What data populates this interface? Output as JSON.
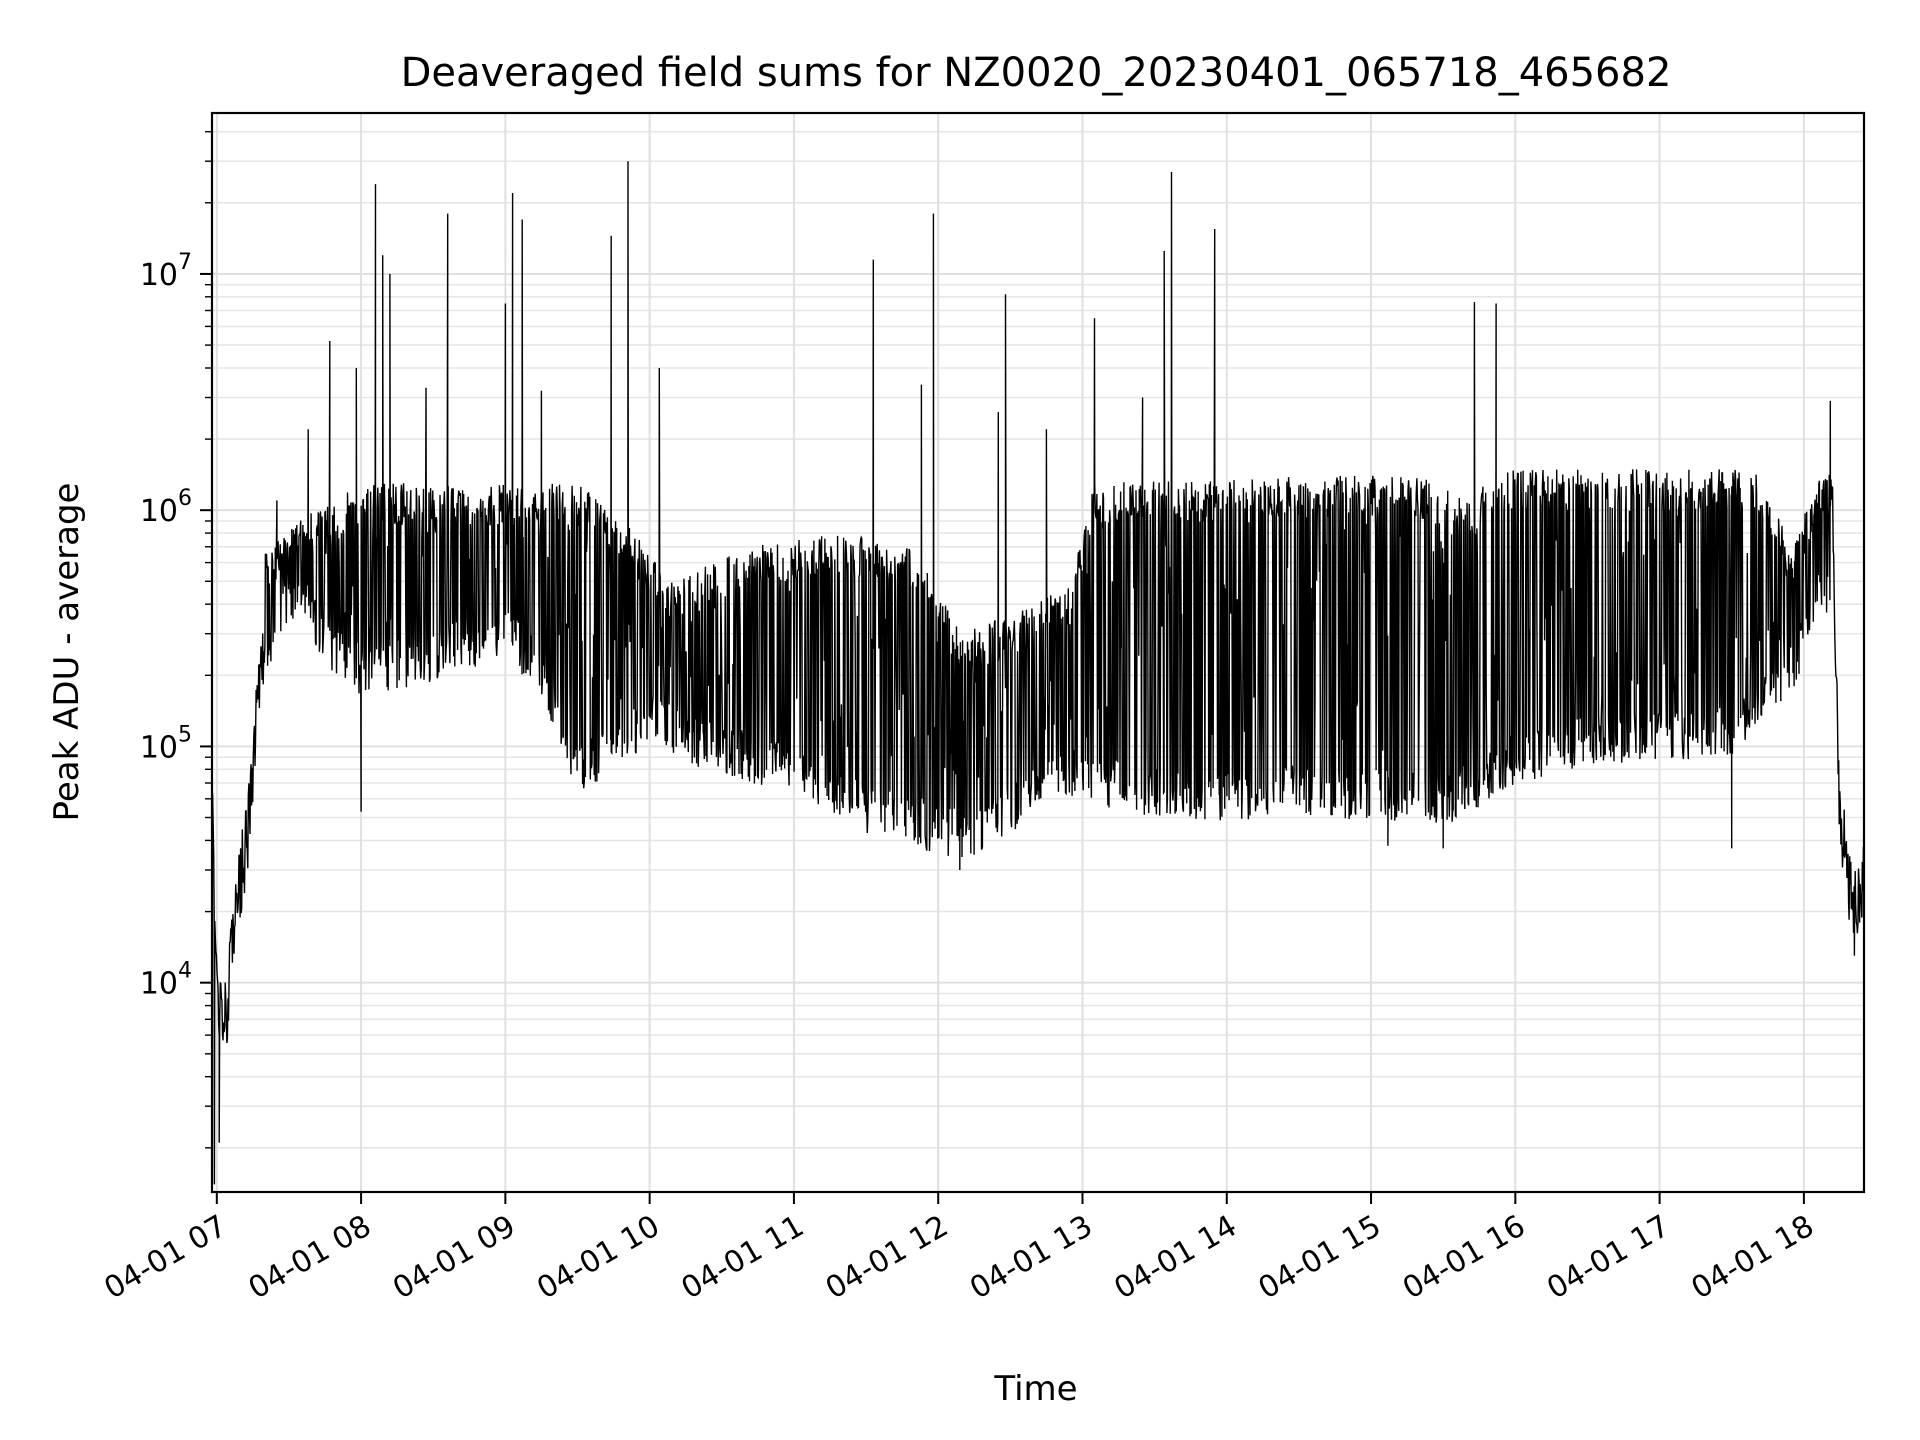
{
  "chart_data": {
    "type": "line",
    "title": "Deaveraged field sums for NZ0020_20230401_065718_465682",
    "xlabel": "Time",
    "ylabel": "Peak ADU - average",
    "xscale": "time",
    "yscale": "log",
    "xlim": [
      "2023-04-01 06:58",
      "2023-04-01 18:25"
    ],
    "ylim": [
      1300,
      48000000
    ],
    "grid": true,
    "line_color": "#000000",
    "x_ticks": [
      "04-01 07",
      "04-01 08",
      "04-01 09",
      "04-01 10",
      "04-01 11",
      "04-01 12",
      "04-01 13",
      "04-01 14",
      "04-01 15",
      "04-01 16",
      "04-01 17",
      "04-01 18"
    ],
    "y_ticks": [
      {
        "value": 10000,
        "base": "10",
        "exp": "4"
      },
      {
        "value": 100000,
        "base": "10",
        "exp": "5"
      },
      {
        "value": 1000000,
        "base": "10",
        "exp": "6"
      },
      {
        "value": 10000000,
        "base": "10",
        "exp": "7"
      }
    ],
    "series": [
      {
        "baseline": [
          [
            "2023-04-01 06:58",
            60000
          ],
          [
            "2023-04-01 07:00",
            10000
          ],
          [
            "2023-04-01 07:03",
            6000
          ],
          [
            "2023-04-01 07:08",
            20000
          ],
          [
            "2023-04-01 07:13",
            45000
          ],
          [
            "2023-04-01 07:18",
            200000
          ],
          [
            "2023-04-01 07:25",
            550000
          ],
          [
            "2023-04-01 07:35",
            700000
          ],
          [
            "2023-04-01 07:45",
            400000
          ],
          [
            "2023-04-01 08:00",
            300000
          ],
          [
            "2023-04-01 08:30",
            350000
          ],
          [
            "2023-04-01 09:00",
            450000
          ],
          [
            "2023-04-01 09:15",
            300000
          ],
          [
            "2023-04-01 09:30",
            120000
          ],
          [
            "2023-04-01 09:50",
            150000
          ],
          [
            "2023-04-01 10:00",
            200000
          ],
          [
            "2023-04-01 10:20",
            150000
          ],
          [
            "2023-04-01 10:40",
            130000
          ],
          [
            "2023-04-01 11:00",
            120000
          ],
          [
            "2023-04-01 11:30",
            80000
          ],
          [
            "2023-04-01 11:50",
            70000
          ],
          [
            "2023-04-01 12:10",
            60000
          ],
          [
            "2023-04-01 12:30",
            80000
          ],
          [
            "2023-04-01 12:50",
            110000
          ],
          [
            "2023-04-01 13:00",
            110000
          ],
          [
            "2023-04-01 13:30",
            90000
          ],
          [
            "2023-04-01 14:00",
            90000
          ],
          [
            "2023-04-01 14:30",
            95000
          ],
          [
            "2023-04-01 15:00",
            90000
          ],
          [
            "2023-04-01 15:30",
            85000
          ],
          [
            "2023-04-01 15:45",
            100000
          ],
          [
            "2023-04-01 16:00",
            130000
          ],
          [
            "2023-04-01 16:30",
            150000
          ],
          [
            "2023-04-01 17:00",
            160000
          ],
          [
            "2023-04-01 17:30",
            170000
          ],
          [
            "2023-04-01 17:55",
            300000
          ],
          [
            "2023-04-01 18:05",
            600000
          ],
          [
            "2023-04-01 18:12",
            700000
          ],
          [
            "2023-04-01 18:15",
            50000
          ],
          [
            "2023-04-01 18:20",
            20000
          ],
          [
            "2023-04-01 18:25",
            30000
          ]
        ],
        "upper": [
          [
            "2023-04-01 07:20",
            700000
          ],
          [
            "2023-04-01 07:40",
            1000000
          ],
          [
            "2023-04-01 08:00",
            1300000
          ],
          [
            "2023-04-01 09:30",
            1300000
          ],
          [
            "2023-04-01 09:50",
            900000
          ],
          [
            "2023-04-01 10:10",
            500000
          ],
          [
            "2023-04-01 10:40",
            700000
          ],
          [
            "2023-04-01 11:20",
            800000
          ],
          [
            "2023-04-01 11:50",
            700000
          ],
          [
            "2023-04-01 12:10",
            300000
          ],
          [
            "2023-04-01 12:40",
            400000
          ],
          [
            "2023-04-01 12:55",
            500000
          ],
          [
            "2023-04-01 13:05",
            1300000
          ],
          [
            "2023-04-01 14:30",
            1400000
          ],
          [
            "2023-04-01 15:20",
            1400000
          ],
          [
            "2023-04-01 15:40",
            1100000
          ],
          [
            "2023-04-01 15:55",
            1500000
          ],
          [
            "2023-04-01 17:40",
            1500000
          ],
          [
            "2023-04-01 17:55",
            700000
          ],
          [
            "2023-04-01 18:05",
            1300000
          ],
          [
            "2023-04-01 18:12",
            1500000
          ]
        ],
        "spikes": [
          [
            "2023-04-01 07:25",
            1100000
          ],
          [
            "2023-04-01 07:38",
            2200000
          ],
          [
            "2023-04-01 07:47",
            5200000
          ],
          [
            "2023-04-01 07:58",
            4000000
          ],
          [
            "2023-04-01 08:06",
            24000000
          ],
          [
            "2023-04-01 08:09",
            12000000
          ],
          [
            "2023-04-01 08:12",
            10000000
          ],
          [
            "2023-04-01 08:27",
            3300000
          ],
          [
            "2023-04-01 08:36",
            18000000
          ],
          [
            "2023-04-01 09:00",
            7500000
          ],
          [
            "2023-04-01 09:03",
            22000000
          ],
          [
            "2023-04-01 09:07",
            17000000
          ],
          [
            "2023-04-01 09:15",
            3200000
          ],
          [
            "2023-04-01 09:44",
            14500000
          ],
          [
            "2023-04-01 09:51",
            30000000
          ],
          [
            "2023-04-01 10:04",
            4000000
          ],
          [
            "2023-04-01 11:33",
            11500000
          ],
          [
            "2023-04-01 11:53",
            3400000
          ],
          [
            "2023-04-01 11:58",
            18000000
          ],
          [
            "2023-04-01 12:25",
            2600000
          ],
          [
            "2023-04-01 12:28",
            8200000
          ],
          [
            "2023-04-01 12:45",
            2200000
          ],
          [
            "2023-04-01 13:05",
            6500000
          ],
          [
            "2023-04-01 13:25",
            3000000
          ],
          [
            "2023-04-01 13:34",
            12500000
          ],
          [
            "2023-04-01 13:37",
            27000000
          ],
          [
            "2023-04-01 13:55",
            15500000
          ],
          [
            "2023-04-01 15:43",
            7600000
          ],
          [
            "2023-04-01 15:52",
            7500000
          ],
          [
            "2023-04-01 18:11",
            2900000
          ]
        ],
        "dips": [
          [
            "2023-04-01 06:59",
            1400
          ],
          [
            "2023-04-01 07:01",
            2100
          ],
          [
            "2023-04-01 08:00",
            53000
          ],
          [
            "2023-04-01 11:50",
            40000
          ],
          [
            "2023-04-01 12:09",
            30000
          ],
          [
            "2023-04-01 12:18",
            37000
          ],
          [
            "2023-04-01 15:07",
            38000
          ],
          [
            "2023-04-01 15:30",
            37000
          ],
          [
            "2023-04-01 17:30",
            37000
          ],
          [
            "2023-04-01 18:21",
            13000
          ]
        ]
      }
    ]
  }
}
